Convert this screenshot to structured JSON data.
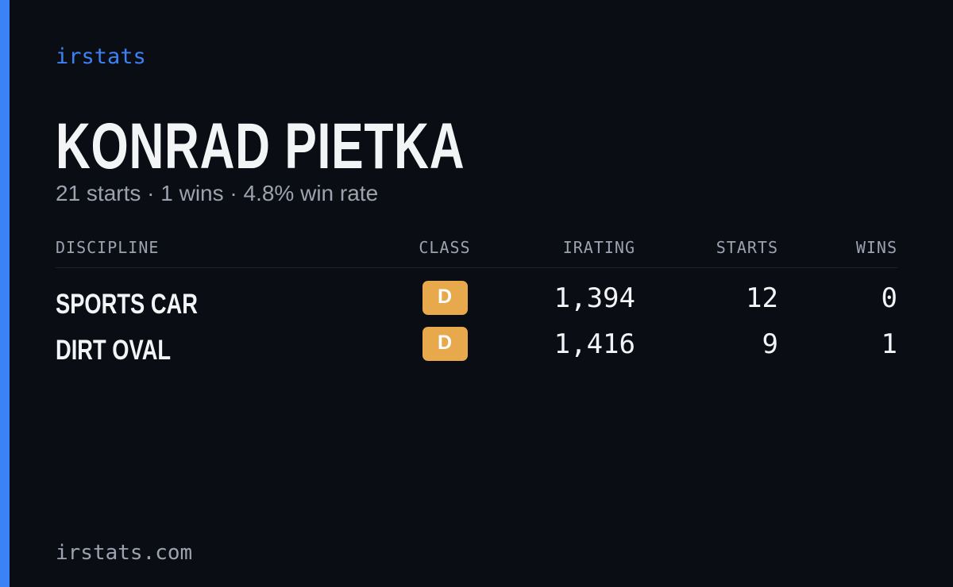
{
  "brand": "irstats",
  "name": "KONRAD PIETKA",
  "summary": "21 starts · 1 wins · 4.8% win rate",
  "table": {
    "headers": [
      "DISCIPLINE",
      "CLASS",
      "IRATING",
      "STARTS",
      "WINS"
    ],
    "rows": [
      [
        "SPORTS CAR",
        "D",
        "1,394",
        "12",
        "0"
      ],
      [
        "DIRT OVAL",
        "D",
        "1,416",
        "9",
        "1"
      ]
    ]
  },
  "footer": "irstats.com"
}
